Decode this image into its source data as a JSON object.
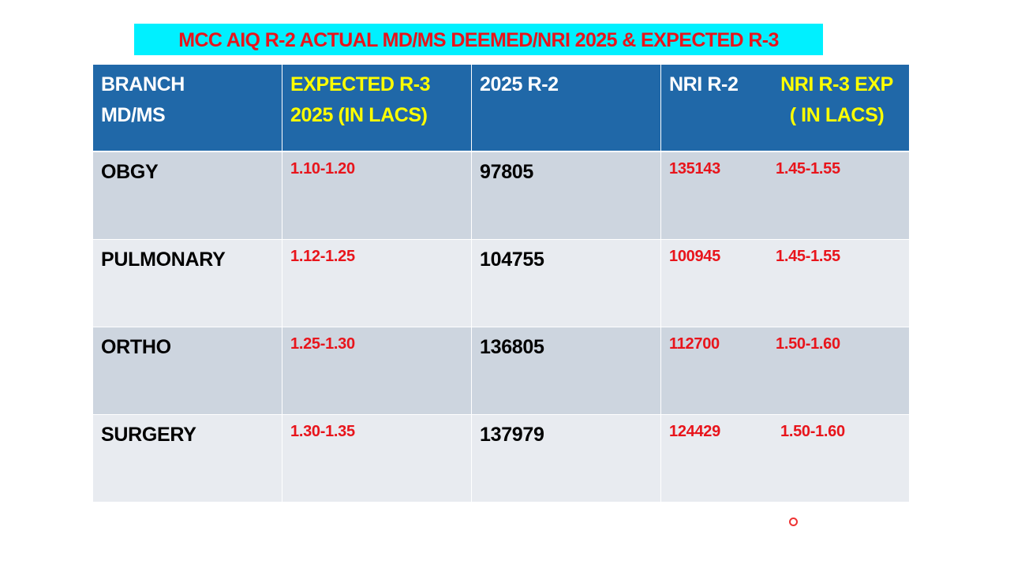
{
  "title": "MCC AIQ R-2 ACTUAL MD/MS DEEMED/NRI 2025 & EXPECTED R-3",
  "table": {
    "header": [
      [
        "BRANCH",
        "MD/MS"
      ],
      [
        "EXPECTED R-3",
        "2025 (IN LACS)"
      ],
      [
        "2025 R-2"
      ],
      [
        "NRI R-2"
      ],
      [
        "NRI R-3 EXP",
        "( IN LACS)"
      ]
    ],
    "rows": [
      [
        "OBGY",
        "1.10-1.20",
        "97805",
        "135143",
        "1.45-1.55"
      ],
      [
        "PULMONARY",
        "1.12-1.25",
        "104755",
        "100945",
        "1.45-1.55"
      ],
      [
        "ORTHO",
        "1.25-1.30",
        "136805",
        "112700",
        "1.50-1.60"
      ],
      [
        "SURGERY",
        "1.30-1.35",
        "137979",
        "124429",
        "1.50-1.60"
      ]
    ]
  }
}
